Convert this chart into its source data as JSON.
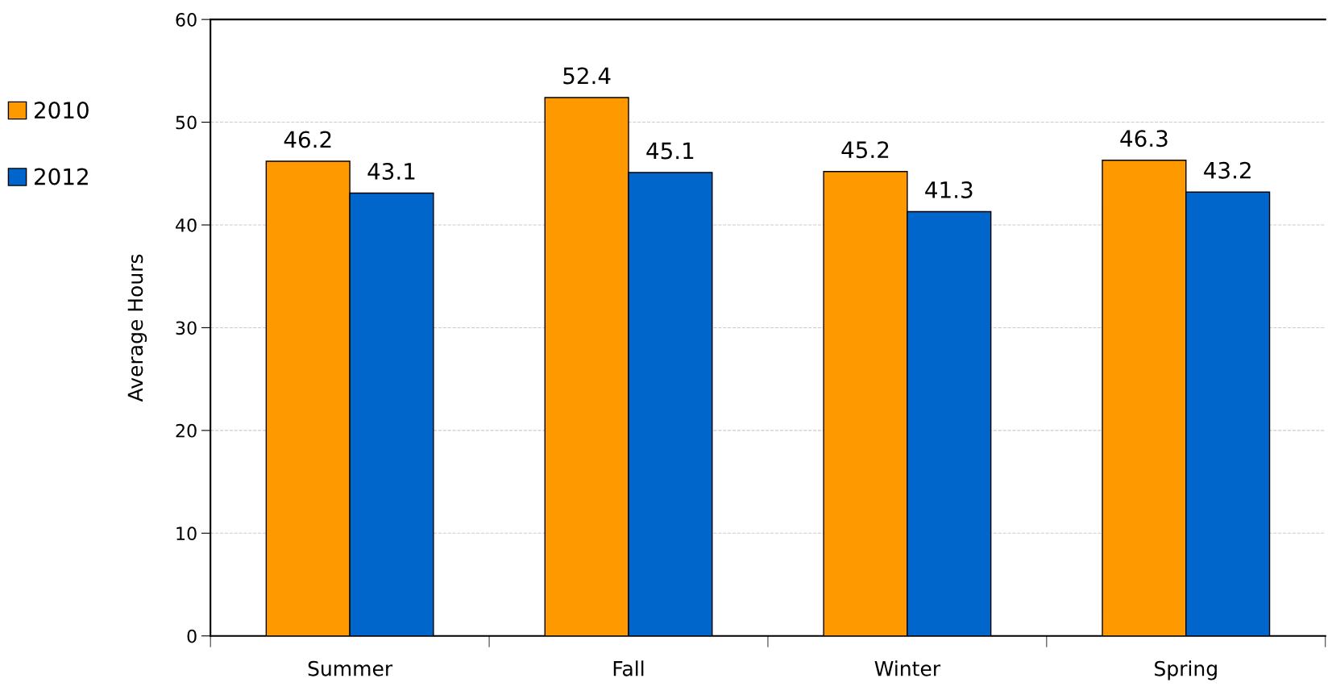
{
  "chart_data": {
    "type": "bar",
    "ylabel": "Average Hours",
    "categories": [
      "Summer",
      "Fall",
      "Winter",
      "Spring"
    ],
    "series": [
      {
        "name": "2010",
        "color": "#ff9900",
        "values": [
          46.2,
          52.4,
          45.2,
          46.3
        ]
      },
      {
        "name": "2012",
        "color": "#0066cc",
        "values": [
          43.1,
          45.1,
          41.3,
          43.2
        ]
      }
    ],
    "ylim": [
      0,
      60
    ],
    "yticks": [
      0,
      10,
      20,
      30,
      40,
      50,
      60
    ],
    "grid": "y",
    "legend": "left",
    "data_labels": true
  }
}
